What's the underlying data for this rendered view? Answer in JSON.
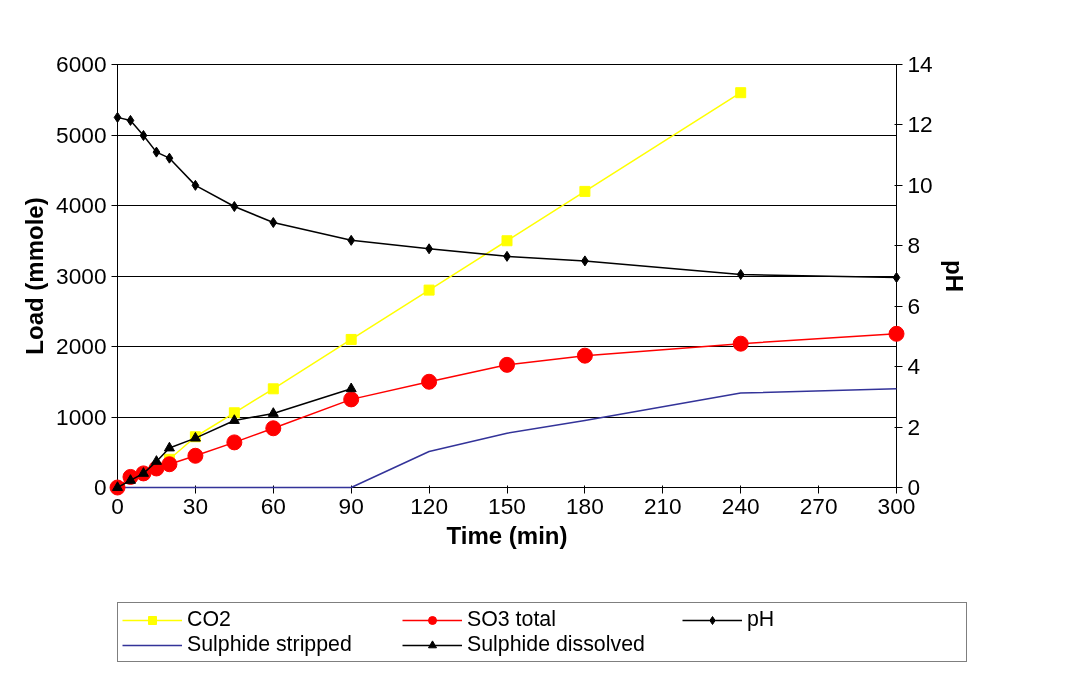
{
  "chart_data": {
    "type": "line",
    "xlabel": "Time (min)",
    "ylabel": "Load (mmole)",
    "y2label": "pH",
    "xlim": [
      0,
      300
    ],
    "xticks": [
      0,
      30,
      60,
      90,
      120,
      150,
      180,
      210,
      240,
      270,
      300
    ],
    "ylim": [
      0,
      6000
    ],
    "yticks": [
      0,
      1000,
      2000,
      3000,
      4000,
      5000,
      6000
    ],
    "y2lim": [
      0,
      14
    ],
    "y2ticks": [
      0,
      2,
      4,
      6,
      8,
      10,
      12,
      14
    ],
    "grid": "y",
    "legend": "bottom",
    "series": [
      {
        "name": "CO2",
        "color": "#ffff00",
        "marker": "square",
        "x": [
          0,
          10,
          20,
          30,
          45,
          60,
          90,
          120,
          150,
          180,
          240
        ],
        "values": [
          0,
          200,
          400,
          720,
          1060,
          1400,
          2100,
          2800,
          3500,
          4200,
          5600
        ]
      },
      {
        "name": "Sulphide stripped",
        "color": "#333399",
        "marker": "none",
        "x": [
          0,
          10,
          20,
          30,
          45,
          60,
          90,
          120,
          150,
          180,
          240,
          300
        ],
        "values": [
          0,
          0,
          0,
          0,
          0,
          0,
          0,
          510,
          770,
          950,
          1340,
          1400
        ]
      },
      {
        "name": "SO3 total",
        "color": "#ff0000",
        "marker": "circle",
        "x": [
          0,
          5,
          10,
          15,
          20,
          30,
          45,
          60,
          90,
          120,
          150,
          180,
          240,
          300
        ],
        "values": [
          0,
          150,
          200,
          270,
          330,
          450,
          640,
          840,
          1250,
          1500,
          1740,
          1870,
          2040,
          2180
        ]
      },
      {
        "name": "Sulphide dissolved",
        "color": "#000000",
        "marker": "triangle",
        "x": [
          0,
          5,
          10,
          15,
          20,
          30,
          45,
          60,
          90
        ],
        "values": [
          0,
          100,
          200,
          370,
          560,
          700,
          950,
          1050,
          1400
        ]
      },
      {
        "name": "pH",
        "color": "#000000",
        "marker": "diamond",
        "axis": "y2",
        "x": [
          0,
          5,
          10,
          15,
          20,
          30,
          45,
          60,
          90,
          120,
          150,
          180,
          240,
          300
        ],
        "values": [
          12.25,
          12.15,
          11.65,
          11.1,
          10.9,
          10.0,
          9.3,
          8.77,
          8.18,
          7.9,
          7.65,
          7.5,
          7.05,
          6.95
        ]
      }
    ]
  }
}
